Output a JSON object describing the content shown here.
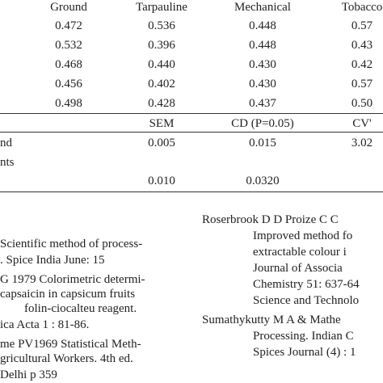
{
  "table": {
    "header": [
      "Ground",
      "Tarpauline",
      "Mechanical",
      "Tobacco"
    ],
    "rows": [
      [
        "0.472",
        "0.536",
        "0.448",
        "0.57"
      ],
      [
        "0.532",
        "0.396",
        "0.448",
        "0.43"
      ],
      [
        "0.468",
        "0.440",
        "0.430",
        "0.42"
      ],
      [
        "0.456",
        "0.402",
        "0.430",
        "0.57"
      ],
      [
        "0.498",
        "0.428",
        "0.437",
        "0.50"
      ]
    ],
    "stats_header": [
      "SEM",
      "CD (P=0.05)",
      "CV'"
    ],
    "stats_rows": [
      {
        "label": "nd",
        "values": [
          "0.005",
          "0.015",
          "3.02"
        ]
      },
      {
        "label": "nts",
        "values": []
      },
      {
        "label": "",
        "values": [
          "0.010",
          "0.0320"
        ]
      }
    ]
  },
  "references": {
    "left": [
      "Scientific method of process-",
      ". Spice India June: 15",
      "G 1979 Colorimetric determi-",
      "capsaicin in capsicum fruits",
      "folin-ciocalteu reagent.",
      "ica Acta 1 : 81-86.",
      "me PV1969 Statistical Meth-",
      "gricultural Workers. 4th ed.",
      "Delhi p 359"
    ],
    "right": [
      "Roserbrook D D   Proize C C",
      "Improved method fo",
      "extractable colour i",
      "Journal of Associa",
      "Chemistry 51: 637-64",
      "Science and Technolo",
      "Sumathykutty M A & Mathe",
      "Processing. Indian C",
      "Spices Journal (4) : 1"
    ]
  }
}
